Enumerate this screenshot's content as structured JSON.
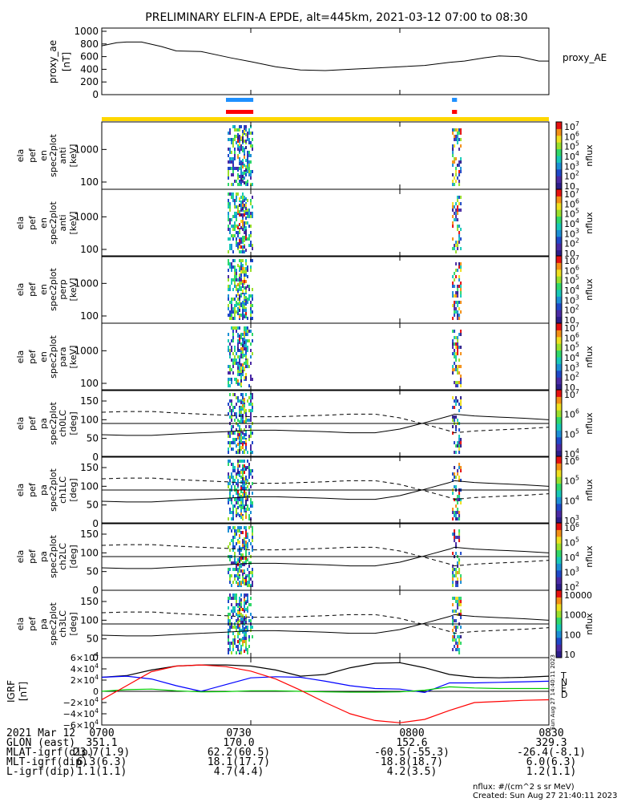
{
  "title": "PRELIMINARY ELFIN-A EPDE, alt=445km, 2021-03-12 07:00 to 08:30",
  "ae_panel": {
    "ylabel": "proxy_ae",
    "yunit": "[nT]",
    "legend": "proxy_AE",
    "yticks": [
      "1000",
      "800",
      "600",
      "400",
      "200",
      "0"
    ]
  },
  "spec_panels": [
    {
      "lines": [
        "ela",
        "pef",
        "en",
        "spec2plot",
        "anti"
      ],
      "unit": "[keV]",
      "yticks": [
        "1000",
        "100"
      ],
      "cbar_ticks": [
        "10^7",
        "10^6",
        "10^5",
        "10^4",
        "10^3",
        "10^2",
        "10"
      ],
      "cbar_label": "nflux"
    },
    {
      "lines": [
        "ela",
        "pef",
        "en",
        "spec2plot",
        "anti"
      ],
      "unit": "[keV]",
      "yticks": [
        "1000",
        "100"
      ],
      "cbar_ticks": [
        "10^7",
        "10^6",
        "10^5",
        "10^4",
        "10^3",
        "10^2",
        "10"
      ],
      "cbar_label": "nflux"
    },
    {
      "lines": [
        "ela",
        "pef",
        "en",
        "spec2plot",
        "perp"
      ],
      "unit": "[keV]",
      "yticks": [
        "1000",
        "100"
      ],
      "cbar_ticks": [
        "10^7",
        "10^6",
        "10^5",
        "10^4",
        "10^3",
        "10^2",
        "10"
      ],
      "cbar_label": "nflux"
    },
    {
      "lines": [
        "ela",
        "pef",
        "en",
        "spec2plot",
        "para"
      ],
      "unit": "[keV]",
      "yticks": [
        "1000",
        "100"
      ],
      "cbar_ticks": [
        "10^7",
        "10^6",
        "10^5",
        "10^4",
        "10^3",
        "10^2",
        "10"
      ],
      "cbar_label": "nflux"
    },
    {
      "lines": [
        "ela",
        "pef",
        "pa",
        "spec2plot",
        "ch0LC"
      ],
      "unit": "[deg]",
      "yticks": [
        "150",
        "100",
        "50",
        "0"
      ],
      "cbar_ticks": [
        "10^7",
        "10^6",
        "10^5",
        "10^4"
      ],
      "cbar_label": "nflux"
    },
    {
      "lines": [
        "ela",
        "pef",
        "pa",
        "spec2plot",
        "ch1LC"
      ],
      "unit": "[deg]",
      "yticks": [
        "150",
        "100",
        "50",
        "0"
      ],
      "cbar_ticks": [
        "10^6",
        "10^5",
        "10^4",
        "10^3"
      ],
      "cbar_label": "nflux"
    },
    {
      "lines": [
        "ela",
        "pef",
        "pa",
        "spec2plot",
        "ch2LC"
      ],
      "unit": "[deg]",
      "yticks": [
        "150",
        "100",
        "50",
        "0"
      ],
      "cbar_ticks": [
        "10^6",
        "10^5",
        "10^4",
        "10^3",
        "10^2"
      ],
      "cbar_label": "nflux"
    },
    {
      "lines": [
        "ela",
        "pef",
        "pa",
        "spec2plot",
        "ch3LC"
      ],
      "unit": "[deg]",
      "yticks": [
        "150",
        "100",
        "50",
        "0"
      ],
      "cbar_ticks": [
        "10000",
        "1000",
        "100",
        "10"
      ],
      "cbar_label": "nflux"
    }
  ],
  "igrf_panel": {
    "ylabel": "IGRF",
    "yunit": "[nT]",
    "yticks": [
      "6×10^4",
      "4×10^4",
      "2×10^4",
      "0",
      "−2×10^4",
      "−4×10^4",
      "−6×10^4"
    ],
    "legend": [
      {
        "label": "T",
        "color": "#000000"
      },
      {
        "label": "N",
        "color": "#0000ff"
      },
      {
        "label": "E",
        "color": "#00cc00"
      },
      {
        "label": "D",
        "color": "#ff0000"
      }
    ],
    "stamp": "Sun Aug 27 14:40:11 2023"
  },
  "footer_table": {
    "rows": [
      {
        "label": "2021 Mar 12",
        "values": [
          "0700",
          "0730",
          "0800",
          "0830"
        ]
      },
      {
        "label": "GLON (east)",
        "values": [
          "351.1",
          "170.0",
          "152.6",
          "329.3"
        ]
      },
      {
        "label": "MLAT-igrf(dip)",
        "values": [
          "23.7(1.9)",
          "62.2(60.5)",
          "-60.5(-55.3)",
          "-26.4(-8.1)"
        ]
      },
      {
        "label": "MLT-igrf(dip)",
        "values": [
          "6.3(6.3)",
          "18.1(17.7)",
          "18.8(18.7)",
          "6.0(6.3)"
        ]
      },
      {
        "label": "L-igrf(dip)",
        "values": [
          "1.1(1.1)",
          "4.7(4.4)",
          "4.2(3.5)",
          "1.2(1.1)"
        ]
      }
    ]
  },
  "units_note": "nflux: #/(cm^2 s sr MeV)",
  "created": "Created: Sun Aug 27 21:40:11 2023",
  "chart_data": {
    "type": "line",
    "title": "PRELIMINARY ELFIN-A EPDE, alt=445km, 2021-03-12 07:00 to 08:30",
    "x_ticks": [
      "0700",
      "0730",
      "0800",
      "0830"
    ],
    "x_range_min": [
      0,
      90
    ],
    "science_zones": [
      [
        25,
        30.5
      ],
      [
        70.5,
        71.5
      ]
    ],
    "proxy_ae": {
      "ylim": [
        0,
        1000
      ],
      "x_min": [
        0,
        3,
        5,
        8,
        12,
        15,
        20,
        26,
        30,
        35,
        40,
        45,
        50,
        55,
        60,
        65,
        70,
        73,
        77,
        80,
        84,
        88,
        90
      ],
      "values": [
        770,
        820,
        830,
        830,
        760,
        690,
        680,
        580,
        520,
        440,
        390,
        380,
        400,
        420,
        440,
        460,
        510,
        530,
        580,
        610,
        600,
        530,
        530
      ]
    },
    "energy_ylim_keV": [
      60,
      7000
    ],
    "pitch_angle_ylim_deg": [
      0,
      180
    ],
    "loss_cone_deg": {
      "x_min": [
        0,
        5,
        10,
        15,
        20,
        25,
        30,
        35,
        40,
        45,
        50,
        55,
        60,
        65,
        70,
        71,
        75,
        80,
        85,
        90
      ],
      "lc": [
        60,
        58,
        58,
        62,
        65,
        68,
        72,
        72,
        70,
        68,
        65,
        65,
        75,
        92,
        110,
        115,
        110,
        107,
        104,
        100
      ],
      "antilc": [
        120,
        122,
        122,
        118,
        115,
        112,
        108,
        108,
        110,
        112,
        115,
        115,
        105,
        88,
        70,
        65,
        70,
        73,
        76,
        80
      ],
      "ninety": 90
    },
    "igrf": {
      "ylim": [
        -60000,
        60000
      ],
      "x_min": [
        0,
        5,
        10,
        15,
        20,
        25,
        30,
        35,
        40,
        45,
        50,
        55,
        60,
        65,
        70,
        75,
        80,
        85,
        90
      ],
      "series": [
        {
          "name": "T",
          "values": [
            25000,
            28000,
            38000,
            45000,
            47000,
            47000,
            45000,
            38000,
            27000,
            30000,
            42000,
            50000,
            51000,
            42000,
            30000,
            25000,
            24000,
            25000,
            27000
          ]
        },
        {
          "name": "N",
          "values": [
            25000,
            27000,
            22000,
            10000,
            0,
            12000,
            24000,
            26000,
            25000,
            18000,
            10000,
            5000,
            4000,
            -2000,
            15000,
            15000,
            16000,
            17000,
            18000
          ]
        },
        {
          "name": "E",
          "values": [
            0,
            3000,
            4000,
            1000,
            -1000,
            -500,
            1000,
            1000,
            0,
            -1000,
            -1500,
            -1500,
            -1000,
            2000,
            8000,
            6000,
            5000,
            5000,
            5000
          ]
        },
        {
          "name": "D",
          "values": [
            -15000,
            10000,
            35000,
            45000,
            47000,
            44000,
            36000,
            22000,
            2000,
            -20000,
            -40000,
            -52000,
            -56000,
            -50000,
            -34000,
            -20000,
            -18000,
            -16000,
            -15000
          ]
        }
      ]
    }
  }
}
